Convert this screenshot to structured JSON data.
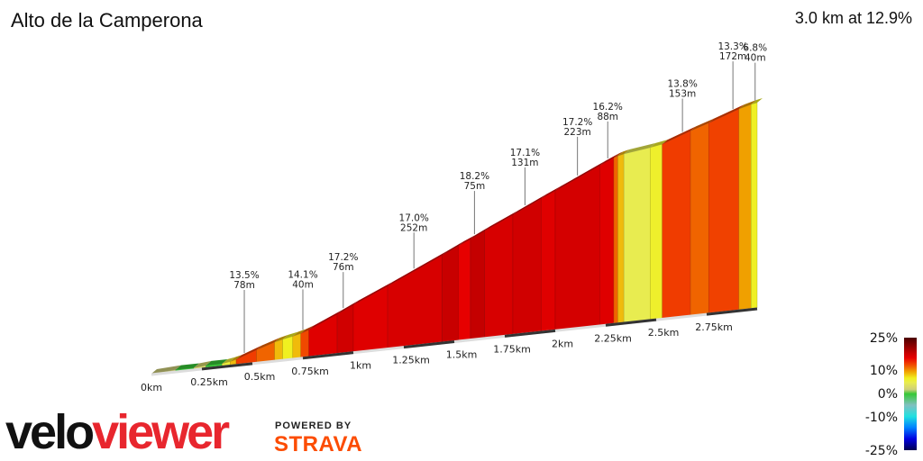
{
  "title": "Alto de la Camperona",
  "summary": "3.0 km at 12.9%",
  "chart_data": {
    "type": "area",
    "title": "Alto de la Camperona",
    "xlabel": "",
    "ylabel": "",
    "x_unit": "km",
    "xlim": [
      0,
      3.0
    ],
    "x_ticks": [
      "0km",
      "0.25km",
      "0.5km",
      "0.75km",
      "1km",
      "1.25km",
      "1.5km",
      "1.75km",
      "2km",
      "2.25km",
      "2.5km",
      "2.75km"
    ],
    "segments": [
      {
        "from": 0,
        "to": 0.12,
        "gradient": 2
      },
      {
        "from": 0.12,
        "to": 0.21,
        "gradient": 0
      },
      {
        "from": 0.21,
        "to": 0.27,
        "gradient": 3
      },
      {
        "from": 0.27,
        "to": 0.35,
        "gradient": 0
      },
      {
        "from": 0.35,
        "to": 0.39,
        "gradient": 6
      },
      {
        "from": 0.39,
        "to": 0.42,
        "gradient": 9
      },
      {
        "from": 0.42,
        "to": 0.52,
        "gradient": 13.5
      },
      {
        "from": 0.52,
        "to": 0.61,
        "gradient": 12
      },
      {
        "from": 0.61,
        "to": 0.65,
        "gradient": 9
      },
      {
        "from": 0.65,
        "to": 0.7,
        "gradient": 7
      },
      {
        "from": 0.7,
        "to": 0.74,
        "gradient": 9
      },
      {
        "from": 0.74,
        "to": 0.78,
        "gradient": 13
      },
      {
        "from": 0.78,
        "to": 0.92,
        "gradient": 16.5
      },
      {
        "from": 0.92,
        "to": 1.0,
        "gradient": 17.5
      },
      {
        "from": 1.0,
        "to": 1.17,
        "gradient": 16.5
      },
      {
        "from": 1.17,
        "to": 1.44,
        "gradient": 17
      },
      {
        "from": 1.44,
        "to": 1.52,
        "gradient": 18
      },
      {
        "from": 1.52,
        "to": 1.58,
        "gradient": 16
      },
      {
        "from": 1.58,
        "to": 1.65,
        "gradient": 18.2
      },
      {
        "from": 1.65,
        "to": 1.79,
        "gradient": 17
      },
      {
        "from": 1.79,
        "to": 1.93,
        "gradient": 17.5
      },
      {
        "from": 1.93,
        "to": 2.0,
        "gradient": 16.5
      },
      {
        "from": 2.0,
        "to": 2.22,
        "gradient": 17.2
      },
      {
        "from": 2.22,
        "to": 2.29,
        "gradient": 16.5
      },
      {
        "from": 2.29,
        "to": 2.31,
        "gradient": 12
      },
      {
        "from": 2.31,
        "to": 2.34,
        "gradient": 9
      },
      {
        "from": 2.34,
        "to": 2.47,
        "gradient": 5
      },
      {
        "from": 2.47,
        "to": 2.53,
        "gradient": 6.5
      },
      {
        "from": 2.53,
        "to": 2.67,
        "gradient": 13.5
      },
      {
        "from": 2.67,
        "to": 2.76,
        "gradient": 12
      },
      {
        "from": 2.76,
        "to": 2.91,
        "gradient": 13.3
      },
      {
        "from": 2.91,
        "to": 2.97,
        "gradient": 10
      },
      {
        "from": 2.97,
        "to": 3.0,
        "gradient": 6.8
      }
    ],
    "annotations": [
      {
        "km": 0.46,
        "gradient": "13.5%",
        "length": "78m"
      },
      {
        "km": 0.75,
        "gradient": "14.1%",
        "length": "40m"
      },
      {
        "km": 0.95,
        "gradient": "17.2%",
        "length": "76m"
      },
      {
        "km": 1.3,
        "gradient": "17.0%",
        "length": "252m"
      },
      {
        "km": 1.6,
        "gradient": "18.2%",
        "length": "75m"
      },
      {
        "km": 1.85,
        "gradient": "17.1%",
        "length": "131m"
      },
      {
        "km": 2.11,
        "gradient": "17.2%",
        "length": "223m"
      },
      {
        "km": 2.26,
        "gradient": "16.2%",
        "length": "88m"
      },
      {
        "km": 2.63,
        "gradient": "13.8%",
        "length": "153m"
      },
      {
        "km": 2.88,
        "gradient": "13.3%",
        "length": "172m"
      },
      {
        "km": 2.99,
        "gradient": "6.8%",
        "length": "40m"
      }
    ],
    "legend": {
      "labels": [
        "25%",
        "10%",
        "0%",
        "-10%",
        "-25%"
      ],
      "stops": [
        {
          "g": 25,
          "color": "#4a0000"
        },
        {
          "g": 18,
          "color": "#c80000"
        },
        {
          "g": 16,
          "color": "#e60000"
        },
        {
          "g": 13.5,
          "color": "#f03c00"
        },
        {
          "g": 12,
          "color": "#f06400"
        },
        {
          "g": 10,
          "color": "#f0a000"
        },
        {
          "g": 7,
          "color": "#f0f020"
        },
        {
          "g": 5,
          "color": "#e8ec50"
        },
        {
          "g": 2,
          "color": "#cfcf7a"
        },
        {
          "g": 0,
          "color": "#36c836"
        },
        {
          "g": -5,
          "color": "#80c0c0"
        },
        {
          "g": -10,
          "color": "#20e0e0"
        },
        {
          "g": -15,
          "color": "#0080ff"
        },
        {
          "g": -20,
          "color": "#0000e0"
        },
        {
          "g": -25,
          "color": "#000050"
        }
      ]
    }
  },
  "branding": {
    "velo": "velo",
    "viewer": "viewer",
    "powered_by": "POWERED BY",
    "strava": "STRAVA"
  }
}
